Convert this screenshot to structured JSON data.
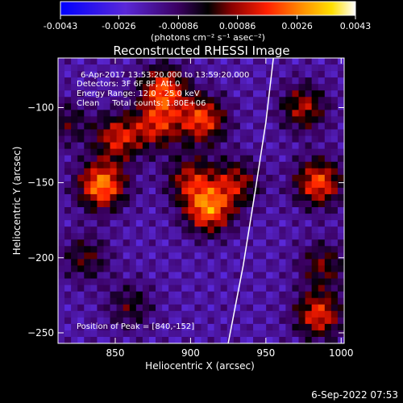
{
  "colorbar": {
    "tick_labels": [
      "-0.0043",
      "-0.0026",
      "-0.00086",
      "0.00086",
      "0.0026",
      "0.0043"
    ],
    "tick_values": [
      -0.0043,
      -0.0026,
      -0.00086,
      0.00086,
      0.0026,
      0.0043
    ],
    "range": [
      -0.0043,
      0.0043
    ],
    "unit_label": "(photons cm⁻² s⁻¹ asec⁻²)",
    "colormap": "blue-purple-red-orange-yellow-white"
  },
  "chart_data": {
    "type": "heatmap",
    "title": "Reconstructed RHESSI Image",
    "xlabel": "Heliocentric X (arcsec)",
    "ylabel": "Heliocentric Y (arcsec)",
    "xlim": [
      812,
      1002
    ],
    "ylim": [
      -257,
      -67
    ],
    "xticks": [
      850,
      900,
      950,
      1000
    ],
    "yticks": [
      -100,
      -150,
      -200,
      -250
    ],
    "xtick_labels": [
      "850",
      "900",
      "950",
      "1000"
    ],
    "ytick_labels": [
      "−100",
      "−150",
      "−200",
      "−250"
    ],
    "annotations": [
      "6-Apr-2017 13:53:20.000 to 13:59:20.000",
      "Detectors: 3F 6F 8F, Att 0",
      "Energy Range: 12.0 - 25.0 keV",
      "Clean     Total counts: 1.80E+06"
    ],
    "peak_label": "Position of Peak = [840,-152]",
    "peak_position": [
      840,
      -152
    ],
    "limb_curve": [
      [
        925,
        -257
      ],
      [
        935,
        -205
      ],
      [
        943,
        -155
      ],
      [
        950,
        -110
      ],
      [
        955,
        -67
      ]
    ],
    "sources": [
      {
        "x": 841,
        "y": -152,
        "amp": 0.0043
      },
      {
        "x": 852,
        "y": -120,
        "amp": 0.003
      },
      {
        "x": 882,
        "y": -88,
        "amp": 0.0036
      },
      {
        "x": 878,
        "y": -112,
        "amp": 0.0028
      },
      {
        "x": 908,
        "y": -108,
        "amp": 0.0035
      },
      {
        "x": 912,
        "y": -168,
        "amp": 0.004
      },
      {
        "x": 900,
        "y": -148,
        "amp": 0.0026
      },
      {
        "x": 930,
        "y": -150,
        "amp": 0.0025
      },
      {
        "x": 975,
        "y": -100,
        "amp": 0.0026
      },
      {
        "x": 985,
        "y": -150,
        "amp": 0.0036
      },
      {
        "x": 988,
        "y": -205,
        "amp": 0.002
      },
      {
        "x": 985,
        "y": -238,
        "amp": 0.0033
      },
      {
        "x": 830,
        "y": -200,
        "amp": 0.0018
      },
      {
        "x": 860,
        "y": -232,
        "amp": 0.0016
      },
      {
        "x": 818,
        "y": -110,
        "amp": 0.0015
      }
    ]
  },
  "footer": {
    "date": "6-Sep-2022 07:53"
  }
}
